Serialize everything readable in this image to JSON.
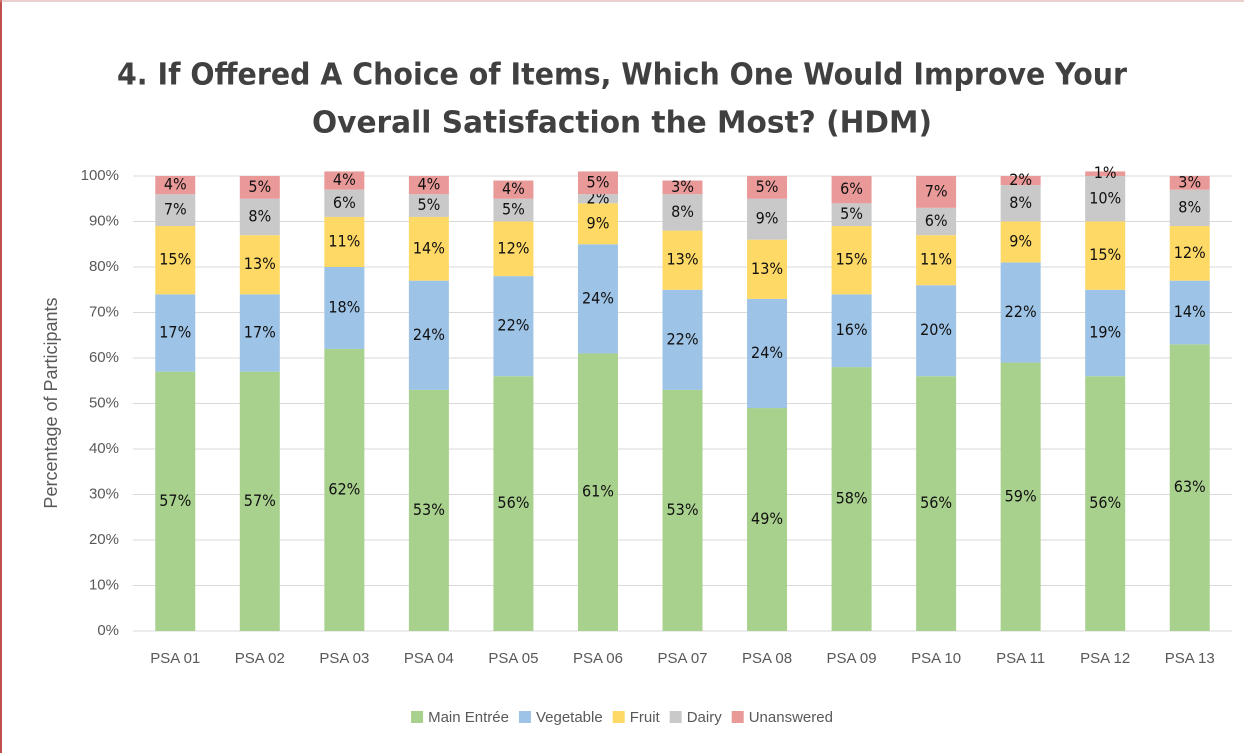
{
  "chart_data": {
    "type": "stacked_bar",
    "title": [
      "4. If Offered A Choice of Items, Which One Would Improve Your",
      "Overall Satisfaction the Most? (HDM)"
    ],
    "y_label": "Percentage of Participants",
    "categories": [
      "PSA 01",
      "PSA 02",
      "PSA 03",
      "PSA 04",
      "PSA 05",
      "PSA 06",
      "PSA 07",
      "PSA 08",
      "PSA 09",
      "PSA 10",
      "PSA 11",
      "PSA 12",
      "PSA 13"
    ],
    "series": [
      {
        "name": "Main Entrée",
        "color": "#a9d18e",
        "values": [
          57,
          57,
          62,
          53,
          56,
          61,
          53,
          49,
          58,
          56,
          59,
          56,
          63
        ],
        "value_labels": [
          "57%",
          "57%",
          "62%",
          "53%",
          "56%",
          "61%",
          "53%",
          "49%",
          "58%",
          "56%",
          "59%",
          "56%",
          "63%"
        ]
      },
      {
        "name": "Vegetable",
        "color": "#9dc3e6",
        "values": [
          17,
          17,
          18,
          24,
          22,
          24,
          22,
          24,
          16,
          20,
          22,
          19,
          14
        ],
        "value_labels": [
          "17%",
          "17%",
          "18%",
          "24%",
          "22%",
          "24%",
          "22%",
          "24%",
          "16%",
          "20%",
          "22%",
          "19%",
          "14%"
        ]
      },
      {
        "name": "Fruit",
        "color": "#ffd966",
        "values": [
          15,
          13,
          11,
          14,
          12,
          9,
          13,
          13,
          15,
          11,
          9,
          15,
          12
        ],
        "value_labels": [
          "15%",
          "13%",
          "11%",
          "14%",
          "12%",
          "9%",
          "13%",
          "13%",
          "15%",
          "11%",
          "9%",
          "15%",
          "12%"
        ]
      },
      {
        "name": "Dairy",
        "color": "#c9c9c9",
        "values": [
          7,
          8,
          6,
          5,
          5,
          2,
          8,
          9,
          5,
          6,
          8,
          10,
          8
        ],
        "value_labels": [
          "7%",
          "8%",
          "6%",
          "5%",
          "5%",
          "2%",
          "8%",
          "9%",
          "5%",
          "6%",
          "8%",
          "10%",
          "8%"
        ]
      },
      {
        "name": "Unanswered",
        "color": "#ea9999",
        "values": [
          4,
          5,
          4,
          4,
          4,
          5,
          3,
          5,
          6,
          7,
          2,
          1,
          3
        ],
        "value_labels": [
          "4%",
          "5%",
          "4%",
          "4%",
          "4%",
          "5%",
          "3%",
          "5%",
          "6%",
          "7%",
          "2%",
          "1%",
          "3%"
        ]
      }
    ],
    "ylim": [
      0,
      100
    ],
    "yticks": [
      {
        "value": 0,
        "label": "0%"
      },
      {
        "value": 10,
        "label": "10%"
      },
      {
        "value": 20,
        "label": "20%"
      },
      {
        "value": 30,
        "label": "30%"
      },
      {
        "value": 40,
        "label": "40%"
      },
      {
        "value": 50,
        "label": "50%"
      },
      {
        "value": 60,
        "label": "60%"
      },
      {
        "value": 70,
        "label": "70%"
      },
      {
        "value": 80,
        "label": "80%"
      },
      {
        "value": 90,
        "label": "90%"
      },
      {
        "value": 100,
        "label": "100%"
      }
    ],
    "grid": true,
    "legend": "bottom"
  }
}
